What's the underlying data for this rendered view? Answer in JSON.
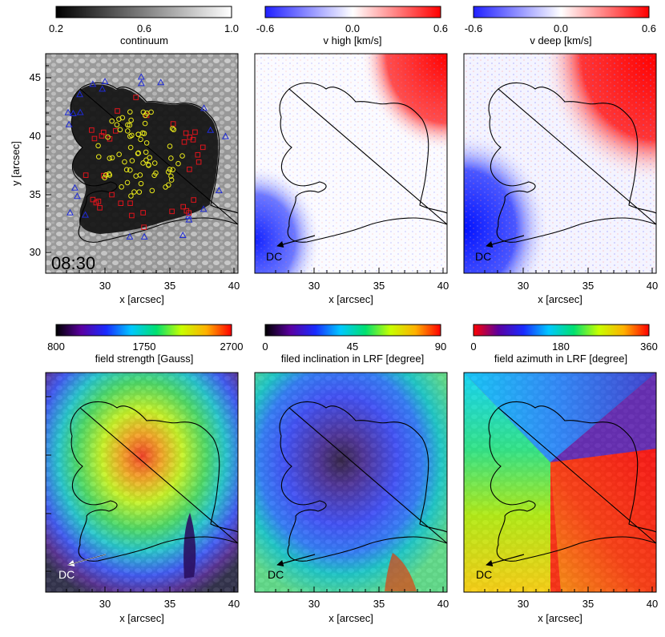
{
  "chart_data": [
    {
      "type": "heatmap",
      "colorbar": {
        "title": "continuum",
        "ticks": [
          "0.2",
          "0.6",
          "1.0"
        ],
        "colors": [
          "#000000",
          "#ffffff"
        ]
      },
      "xlabel": "x [arcsec]",
      "ylabel": "y [arcsec]",
      "xticks": [
        "30",
        "35",
        "40"
      ],
      "yticks": [
        "30",
        "35",
        "40",
        "45"
      ],
      "xlim": [
        25.5,
        40.5
      ],
      "ylim": [
        28.2,
        46.8
      ],
      "annotation": "08:30",
      "markers": {
        "triangle_color": "#1f2bd6",
        "square_color": "#e0141c",
        "circle_color": "#e8e81a"
      }
    },
    {
      "type": "heatmap",
      "colorbar": {
        "title": "v high [km/s]",
        "ticks": [
          "-0.6",
          "0.0",
          "0.6"
        ],
        "colors": [
          "#2020ff",
          "#ffffff",
          "#ff0000"
        ]
      },
      "xlabel": "x [arcsec]",
      "xticks": [
        "30",
        "35",
        "40"
      ],
      "annotation": "DC"
    },
    {
      "type": "heatmap",
      "colorbar": {
        "title": "v deep [km/s]",
        "ticks": [
          "-0.6",
          "0.0",
          "0.6"
        ],
        "colors": [
          "#2020ff",
          "#ffffff",
          "#ff0000"
        ]
      },
      "xlabel": "x [arcsec]",
      "xticks": [
        "30",
        "35",
        "40"
      ],
      "annotation": "DC"
    },
    {
      "type": "heatmap",
      "colorbar": {
        "title": "field strength [Gauss]",
        "ticks": [
          "800",
          "1750",
          "2700"
        ],
        "colors": [
          "#000000",
          "#5a00a0",
          "#1a2bff",
          "#00c8ff",
          "#00e070",
          "#c8ff00",
          "#ffb000",
          "#ff0000"
        ]
      },
      "xlabel": "x [arcsec]",
      "xticks": [
        "30",
        "35",
        "40"
      ],
      "annotation": "DC"
    },
    {
      "type": "heatmap",
      "colorbar": {
        "title": "filed inclination in LRF [degree]",
        "ticks": [
          "0",
          "45",
          "90"
        ],
        "colors": [
          "#000000",
          "#5a00a0",
          "#1a2bff",
          "#00c8ff",
          "#00e070",
          "#c8ff00",
          "#ffb000",
          "#ff0000"
        ]
      },
      "xlabel": "x [arcsec]",
      "xticks": [
        "30",
        "35",
        "40"
      ],
      "annotation": "DC"
    },
    {
      "type": "heatmap",
      "colorbar": {
        "title": "field azimuth in LRF [degree]",
        "ticks": [
          "0",
          "180",
          "360"
        ],
        "colors": [
          "#ff0000",
          "#5a00a0",
          "#1a2bff",
          "#00c8ff",
          "#00e070",
          "#c8ff00",
          "#ffb000",
          "#ff0000"
        ]
      },
      "xlabel": "x [arcsec]",
      "xticks": [
        "30",
        "35",
        "40"
      ],
      "annotation": "DC"
    }
  ]
}
